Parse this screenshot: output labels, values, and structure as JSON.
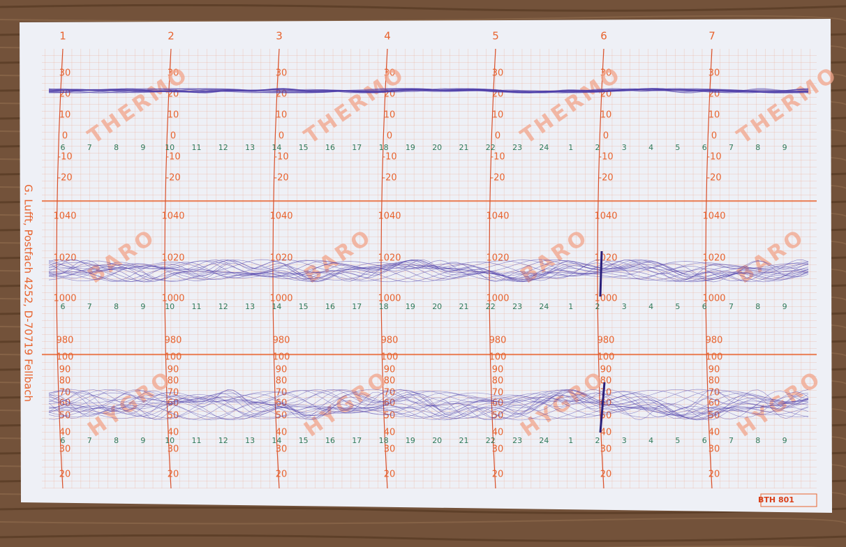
{
  "days": [
    "1",
    "2",
    "3",
    "4",
    "5",
    "6",
    "7"
  ],
  "panels": [
    {
      "watermark": "THERMO",
      "scale": [
        "30",
        "20",
        "10",
        "0",
        "-10",
        "-20"
      ]
    },
    {
      "watermark": "BARO",
      "scale": [
        "1040",
        "1020",
        "1000",
        "980"
      ]
    },
    {
      "watermark": "HYGRO",
      "scale": [
        "100",
        "90",
        "80",
        "70",
        "60",
        "50",
        "40",
        "30",
        "20"
      ]
    }
  ],
  "hours": [
    "6",
    "7",
    "8",
    "9",
    "10",
    "11",
    "12",
    "13",
    "14",
    "15",
    "16",
    "17",
    "18",
    "19",
    "20",
    "21",
    "22",
    "23",
    "24",
    "1",
    "2",
    "3",
    "4",
    "5",
    "6",
    "7",
    "8",
    "9"
  ],
  "imprint": "G. Lufft, Postfach 4252, D-70719 Fellbach",
  "form_code": "BTH 801"
}
